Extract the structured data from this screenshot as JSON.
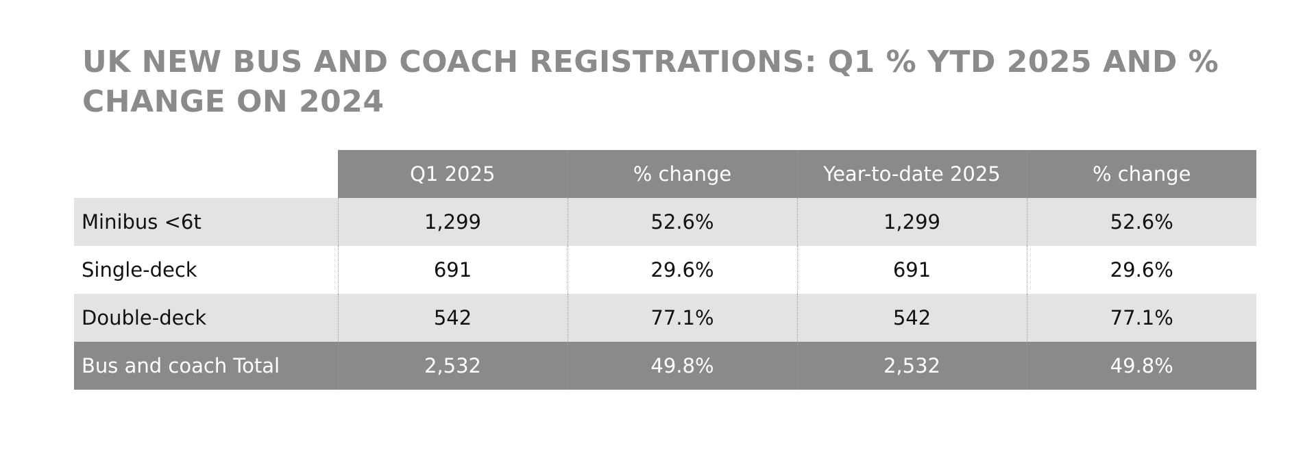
{
  "chart_data": {
    "type": "table",
    "title": "UK NEW BUS AND COACH REGISTRATIONS: Q1 % YTD 2025 AND % CHANGE ON 2024",
    "columns": [
      "",
      "Q1 2025",
      "% change",
      "Year-to-date 2025",
      "% change"
    ],
    "rows": [
      {
        "label": "Minibus <6t",
        "values": [
          "1,299",
          "52.6%",
          "1,299",
          "52.6%"
        ]
      },
      {
        "label": "Single-deck",
        "values": [
          "691",
          "29.6%",
          "691",
          "29.6%"
        ]
      },
      {
        "label": "Double-deck",
        "values": [
          "542",
          "77.1%",
          "542",
          "77.1%"
        ]
      },
      {
        "label": "Bus and coach Total",
        "values": [
          "2,532",
          "49.8%",
          "2,532",
          "49.8%"
        ]
      }
    ]
  },
  "colors": {
    "title": "#8b8b8b",
    "header_bg": "#8a8a8a",
    "shaded_row_bg": "#e3e3e3",
    "total_row_bg": "#8a8a8a"
  }
}
